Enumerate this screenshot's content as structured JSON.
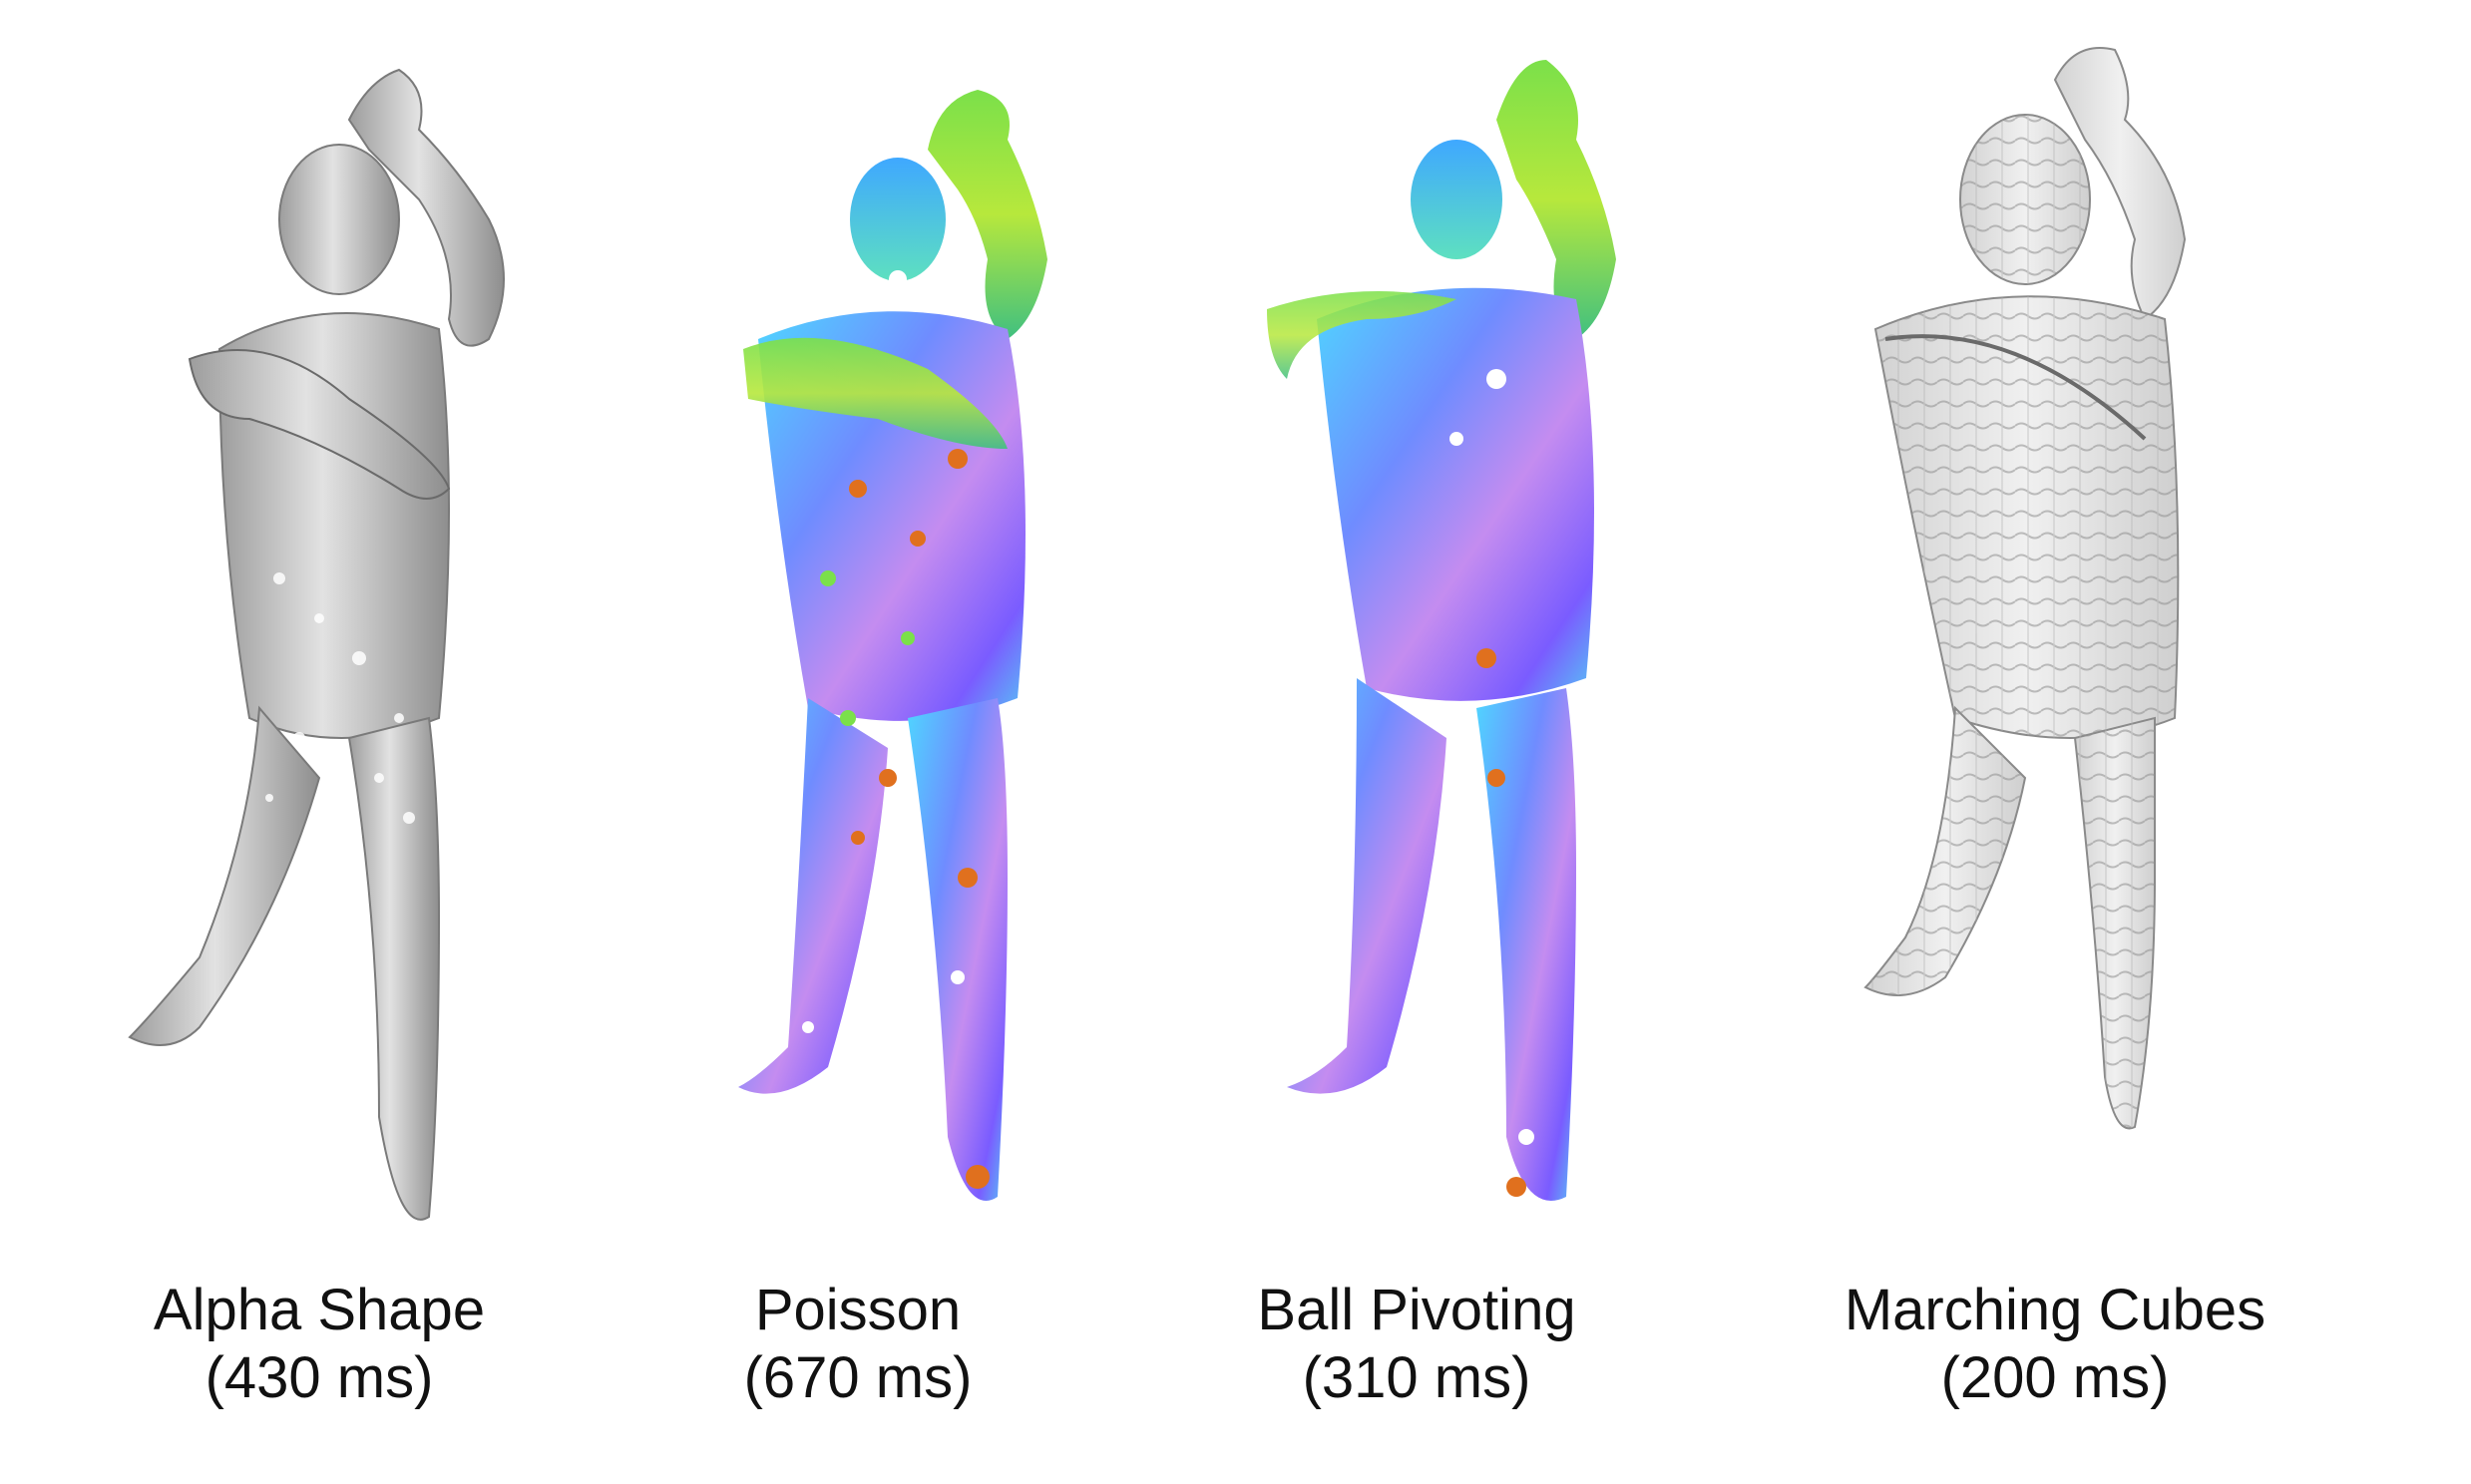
{
  "panels": [
    {
      "method": "Alpha Shape",
      "time": "(430 ms)"
    },
    {
      "method": "Poisson",
      "time": "(670 ms)"
    },
    {
      "method": "Ball Pivoting",
      "time": "(310 ms)"
    },
    {
      "method": "Marching Cubes",
      "time": "(200 ms)"
    }
  ],
  "colors": {
    "gray_mesh": "#c8c8c8",
    "normal_blue": "#6f8cff",
    "normal_purple": "#c48cf0",
    "normal_green": "#7be04a",
    "normal_orange": "#e0701e",
    "wire_gray": "#9a9a9a"
  }
}
